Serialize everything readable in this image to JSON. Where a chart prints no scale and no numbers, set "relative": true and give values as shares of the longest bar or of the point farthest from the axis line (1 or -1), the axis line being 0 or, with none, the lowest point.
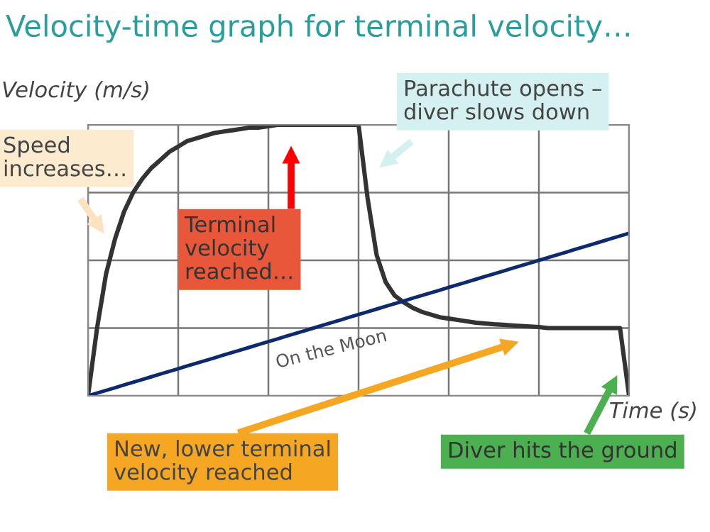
{
  "chart_data": {
    "type": "line",
    "title": "Velocity-time graph for terminal velocity…",
    "xlabel": "Time (s)",
    "ylabel": "Velocity (m/s)",
    "categories": [
      null,
      null,
      null,
      null,
      null,
      null,
      null,
      null,
      null,
      null,
      null,
      null,
      null,
      null,
      null,
      null,
      null,
      null,
      null,
      null,
      null,
      null,
      null,
      null,
      null,
      null,
      null,
      null,
      null,
      null,
      null,
      null,
      null,
      null,
      null,
      null,
      null,
      null,
      null,
      null,
      null,
      null,
      null,
      null,
      null,
      null,
      null,
      null,
      null,
      null,
      null,
      null,
      null,
      null,
      null,
      null,
      null,
      null,
      null,
      null,
      null
    ],
    "relative": true,
    "grid": true,
    "series": [
      {
        "color": "#333333",
        "values": [
          0,
          0.25,
          0.45,
          0.58,
          0.68,
          0.75,
          0.8,
          0.84,
          0.87,
          0.9,
          0.92,
          0.94,
          0.95,
          0.96,
          0.97,
          0.975,
          0.98,
          0.985,
          0.99,
          0.99,
          0.995,
          1,
          1,
          1,
          1,
          1,
          1,
          1,
          1,
          1,
          1,
          0.73,
          0.52,
          0.42,
          0.37,
          0.345,
          0.325,
          0.31,
          0.3,
          0.29,
          0.285,
          0.28,
          0.275,
          0.27,
          0.267,
          0.264,
          0.262,
          0.26,
          0.258,
          0.256,
          0.254,
          0.25,
          0.25,
          0.25,
          0.25,
          0.25,
          0.25,
          0.25,
          0.25,
          0.25,
          0
        ]
      },
      {
        "name": "On the Moon",
        "color": "#0d2a6e",
        "values": [
          0,
          0.01,
          0.02,
          0.03,
          0.04,
          0.05,
          0.06,
          0.07,
          0.08,
          0.09,
          0.1,
          0.11,
          0.12,
          0.13,
          0.14,
          0.15,
          0.16,
          0.17,
          0.18,
          0.19,
          0.2,
          0.21,
          0.22,
          0.23,
          0.24,
          0.25,
          0.26,
          0.27,
          0.28,
          0.29,
          0.3,
          0.31,
          0.32,
          0.33,
          0.34,
          0.35,
          0.36,
          0.37,
          0.38,
          0.39,
          0.4,
          0.41,
          0.42,
          0.43,
          0.44,
          0.45,
          0.46,
          0.47,
          0.48,
          0.49,
          0.5,
          0.51,
          0.52,
          0.53,
          0.54,
          0.55,
          0.56,
          0.57,
          0.58,
          0.59,
          0.6
        ]
      }
    ],
    "annotations": [
      "Speed increases…",
      "Terminal velocity reached…",
      "Parachute opens – diver slows down",
      "New, lower terminal velocity reached",
      "Diver hits the ground"
    ]
  }
}
